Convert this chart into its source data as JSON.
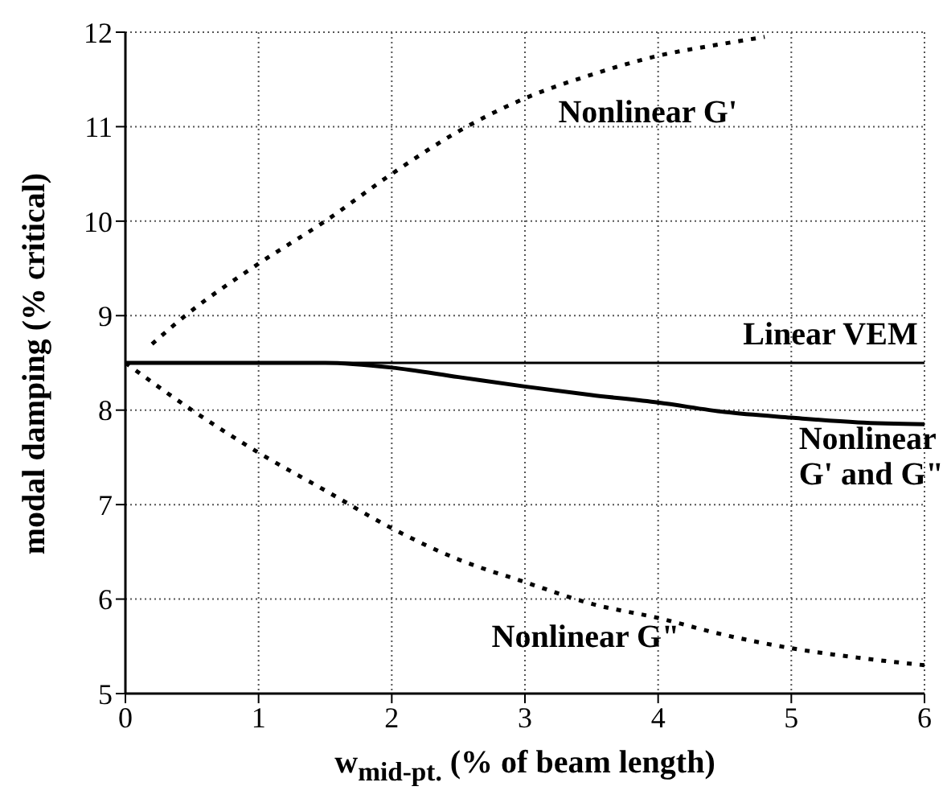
{
  "chart_data": {
    "type": "line",
    "xlabel": "w$_{mid-pt.}$ (% of beam length)",
    "ylabel": "modal damping (% critical)",
    "xlim": [
      0,
      6
    ],
    "ylim": [
      5,
      12
    ],
    "xticks": [
      0,
      1,
      2,
      3,
      4,
      5,
      6
    ],
    "yticks": [
      5,
      6,
      7,
      8,
      9,
      10,
      11,
      12
    ],
    "grid": true,
    "marker": "none",
    "series": [
      {
        "name": "Nonlinear G'",
        "color": "#000000",
        "line_style": "dotted",
        "x": [
          0.2,
          0.45,
          1,
          1.5,
          2,
          2.5,
          3,
          3.5,
          4,
          4.5,
          4.8
        ],
        "values": [
          8.7,
          9.0,
          9.55,
          10.0,
          10.5,
          10.95,
          11.3,
          11.55,
          11.75,
          11.88,
          11.95
        ]
      },
      {
        "name": "Linear VEM",
        "color": "#000000",
        "line_style": "solid",
        "x": [
          0,
          6
        ],
        "values": [
          8.5,
          8.5
        ]
      },
      {
        "name": "Nonlinear\nG' and G\"",
        "color": "#000000",
        "line_style": "solid",
        "x": [
          0,
          1,
          1.5,
          2,
          2.5,
          3,
          3.5,
          4,
          4.5,
          5,
          5.5,
          6
        ],
        "values": [
          8.5,
          8.5,
          8.5,
          8.45,
          8.35,
          8.25,
          8.16,
          8.08,
          7.98,
          7.92,
          7.87,
          7.85
        ]
      },
      {
        "name": "Nonlinear G\"",
        "color": "#000000",
        "line_style": "dotted",
        "x": [
          0,
          0.5,
          1,
          1.5,
          2,
          2.5,
          3,
          3.5,
          4,
          4.5,
          5,
          5.5,
          6
        ],
        "values": [
          8.5,
          8.0,
          7.55,
          7.15,
          6.75,
          6.42,
          6.18,
          5.95,
          5.8,
          5.62,
          5.48,
          5.38,
          5.3
        ]
      }
    ]
  }
}
